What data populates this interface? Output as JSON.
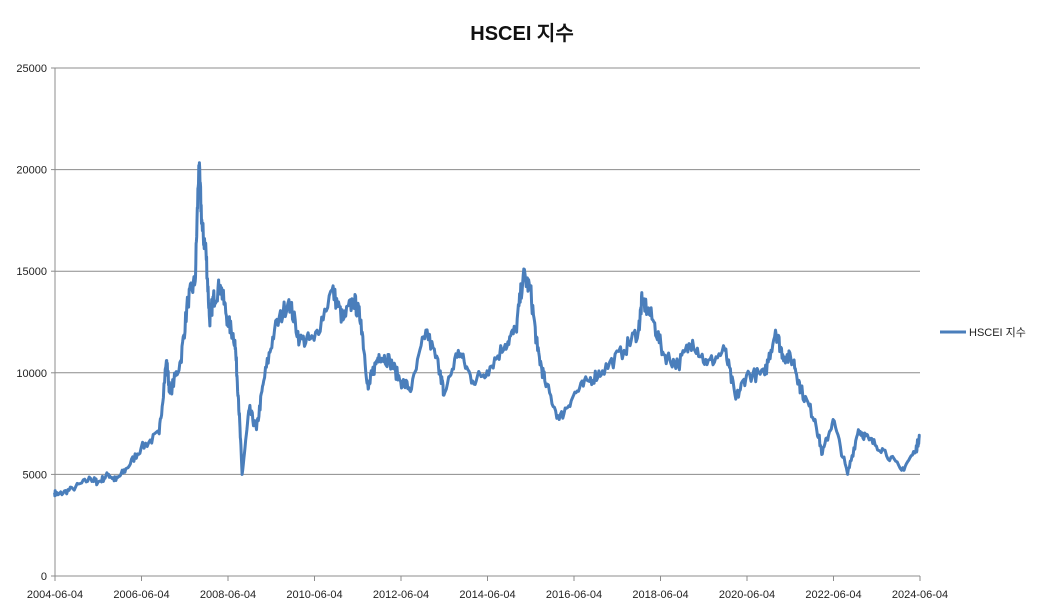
{
  "chart_data": {
    "type": "line",
    "title": "HSCEI 지수",
    "xlabel": "",
    "ylabel": "",
    "ylim": [
      0,
      25000
    ],
    "yticks": [
      "0",
      "5000",
      "10000",
      "15000",
      "20000",
      "25000"
    ],
    "xlim": [
      "2004-06-04",
      "2024-06-04"
    ],
    "xticks": [
      "2004-06-04",
      "2006-06-04",
      "2008-06-04",
      "2010-06-04",
      "2012-06-04",
      "2014-06-04",
      "2016-06-04",
      "2018-06-04",
      "2020-06-04",
      "2022-06-04",
      "2024-06-04"
    ],
    "grid": "horizontal",
    "legend": "right",
    "color": "#4a7ebb",
    "series": [
      {
        "name": "HSCEI 지수",
        "x": [
          "2004-06",
          "2004-07",
          "2004-11",
          "2005-04",
          "2005-06",
          "2005-09",
          "2005-11",
          "2006-02",
          "2006-06",
          "2006-11",
          "2007-01",
          "2007-02",
          "2007-05",
          "2007-07",
          "2007-09",
          "2007-10",
          "2007-11",
          "2007-12",
          "2008-01",
          "2008-02",
          "2008-04",
          "2008-06",
          "2008-08",
          "2008-09",
          "2008-10",
          "2008-12",
          "2009-02",
          "2009-04",
          "2009-07",
          "2009-11",
          "2010-02",
          "2010-06",
          "2010-11",
          "2011-02",
          "2011-05",
          "2011-07",
          "2011-09",
          "2011-10",
          "2011-12",
          "2012-03",
          "2012-06",
          "2012-09",
          "2013-01",
          "2013-05",
          "2013-06",
          "2013-10",
          "2014-02",
          "2014-06",
          "2014-11",
          "2015-02",
          "2015-04",
          "2015-06",
          "2015-08",
          "2015-10",
          "2016-02",
          "2016-06",
          "2016-10",
          "2017-02",
          "2017-08",
          "2017-12",
          "2018-01",
          "2018-04",
          "2018-07",
          "2018-11",
          "2019-03",
          "2019-07",
          "2019-12",
          "2020-03",
          "2020-06",
          "2020-11",
          "2021-02",
          "2021-04",
          "2021-07",
          "2021-09",
          "2022-01",
          "2022-03",
          "2022-06",
          "2022-10",
          "2023-01",
          "2023-04",
          "2023-08",
          "2024-01",
          "2024-05",
          "2024-06"
        ],
        "values": [
          4100,
          4000,
          4300,
          4800,
          4600,
          5000,
          4700,
          5300,
          6300,
          7000,
          10600,
          9000,
          10600,
          13600,
          14500,
          20200,
          17000,
          16000,
          12600,
          13600,
          14300,
          12600,
          11600,
          8700,
          5000,
          8200,
          7200,
          9600,
          12100,
          13600,
          11600,
          11600,
          14100,
          12600,
          13600,
          12600,
          9200,
          9900,
          10900,
          10600,
          9600,
          9200,
          12100,
          10100,
          8900,
          11100,
          9600,
          10100,
          11400,
          12100,
          14800,
          14100,
          11100,
          9600,
          7700,
          8900,
          9600,
          10100,
          11100,
          12100,
          13600,
          12600,
          10900,
          10400,
          11600,
          10400,
          11100,
          8700,
          9900,
          9900,
          12100,
          10900,
          10600,
          9200,
          7700,
          6000,
          7700,
          5000,
          7200,
          6700,
          6200,
          5200,
          6200,
          6900
        ]
      }
    ]
  }
}
